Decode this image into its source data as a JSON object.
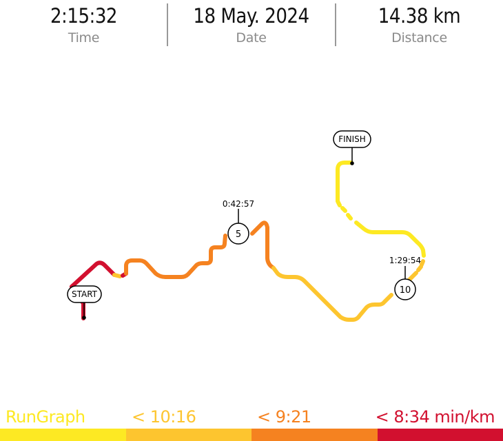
{
  "stats": {
    "time": {
      "value": "2:15:32",
      "label": "Time"
    },
    "date": {
      "value": "18 May. 2024",
      "label": "Date"
    },
    "distance": {
      "value": "14.38 km",
      "label": "Distance"
    }
  },
  "route": {
    "start_label": "START",
    "finish_label": "FINISH",
    "splits": [
      {
        "km": "5",
        "time": "0:42:57"
      },
      {
        "km": "10",
        "time": "1:29:54"
      }
    ]
  },
  "legend": {
    "brand": "RunGraph",
    "pace_1": "< 10:16",
    "pace_2": "< 9:21",
    "pace_3": "< 8:34 min/km"
  },
  "colors": {
    "yellow": "#fde923",
    "light_orange": "#fdc52f",
    "orange": "#f58220",
    "red": "#d2102f"
  }
}
